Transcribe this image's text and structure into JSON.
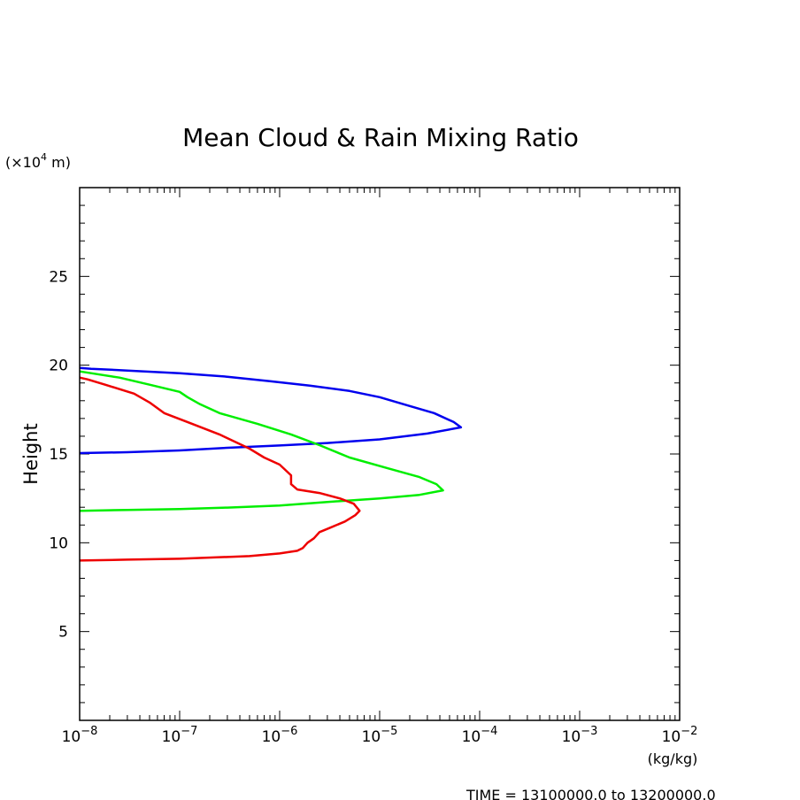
{
  "chart_data": {
    "type": "line",
    "title": "Mean Cloud & Rain Mixing Ratio",
    "xlabel": "",
    "ylabel": "Height",
    "x_unit_label": "(kg/kg)",
    "y_unit_label_prefix": "(×10",
    "y_unit_label_exp": "4",
    "y_unit_label_suffix": " m)",
    "footer": "TIME = 13100000.0 to 13200000.0",
    "x_scale": "log",
    "xlim": [
      1e-08,
      0.01
    ],
    "ylim": [
      0,
      30
    ],
    "x_ticks": [
      {
        "value": 1e-08,
        "base": "10",
        "exp": "−8"
      },
      {
        "value": 1e-07,
        "base": "10",
        "exp": "−7"
      },
      {
        "value": 1e-06,
        "base": "10",
        "exp": "−6"
      },
      {
        "value": 1e-05,
        "base": "10",
        "exp": "−5"
      },
      {
        "value": 0.0001,
        "base": "10",
        "exp": "−4"
      },
      {
        "value": 0.001,
        "base": "10",
        "exp": "−3"
      },
      {
        "value": 0.01,
        "base": "10",
        "exp": "−2"
      }
    ],
    "y_ticks": [
      {
        "value": 5,
        "label": "5"
      },
      {
        "value": 10,
        "label": "10"
      },
      {
        "value": 15,
        "label": "15"
      },
      {
        "value": 20,
        "label": "20"
      },
      {
        "value": 25,
        "label": "25"
      }
    ],
    "grid": false,
    "series": [
      {
        "color": "#0000ee",
        "points": [
          [
            1e-08,
            15.05
          ],
          [
            3e-08,
            15.1
          ],
          [
            1e-07,
            15.2
          ],
          [
            3e-07,
            15.35
          ],
          [
            1e-06,
            15.48
          ],
          [
            3e-06,
            15.62
          ],
          [
            1e-05,
            15.82
          ],
          [
            3e-05,
            16.15
          ],
          [
            6.5e-05,
            16.5
          ],
          [
            5.5e-05,
            16.8
          ],
          [
            3.5e-05,
            17.3
          ],
          [
            2e-05,
            17.7
          ],
          [
            1e-05,
            18.2
          ],
          [
            5e-06,
            18.55
          ],
          [
            2e-06,
            18.85
          ],
          [
            8e-07,
            19.1
          ],
          [
            3e-07,
            19.35
          ],
          [
            1e-07,
            19.55
          ],
          [
            3e-08,
            19.7
          ],
          [
            1.3e-08,
            19.8
          ],
          [
            1e-08,
            19.85
          ]
        ]
      },
      {
        "color": "#00ee00",
        "points": [
          [
            1e-08,
            11.8
          ],
          [
            3e-08,
            11.85
          ],
          [
            1e-07,
            11.9
          ],
          [
            3e-07,
            11.98
          ],
          [
            1e-06,
            12.1
          ],
          [
            3e-06,
            12.3
          ],
          [
            1e-05,
            12.5
          ],
          [
            2.5e-05,
            12.7
          ],
          [
            4.3e-05,
            12.95
          ],
          [
            3.7e-05,
            13.3
          ],
          [
            2.5e-05,
            13.7
          ],
          [
            1.2e-05,
            14.2
          ],
          [
            5e-06,
            14.8
          ],
          [
            2.5e-06,
            15.5
          ],
          [
            1.3e-06,
            16.1
          ],
          [
            6e-07,
            16.7
          ],
          [
            2.5e-07,
            17.3
          ],
          [
            1.6e-07,
            17.8
          ],
          [
            1.2e-07,
            18.2
          ],
          [
            1e-07,
            18.5
          ],
          [
            5e-08,
            18.9
          ],
          [
            2.5e-08,
            19.3
          ],
          [
            1.3e-08,
            19.55
          ],
          [
            1e-08,
            19.65
          ]
        ]
      },
      {
        "color": "#ee0000",
        "points": [
          [
            1e-08,
            9.0
          ],
          [
            3e-08,
            9.05
          ],
          [
            1e-07,
            9.1
          ],
          [
            5e-07,
            9.25
          ],
          [
            1e-06,
            9.4
          ],
          [
            1.5e-06,
            9.55
          ],
          [
            1.7e-06,
            9.7
          ],
          [
            1.9e-06,
            10.0
          ],
          [
            2.2e-06,
            10.25
          ],
          [
            2.5e-06,
            10.6
          ],
          [
            3.2e-06,
            10.85
          ],
          [
            4.5e-06,
            11.2
          ],
          [
            5.7e-06,
            11.55
          ],
          [
            6.3e-06,
            11.8
          ],
          [
            5.5e-06,
            12.2
          ],
          [
            4e-06,
            12.5
          ],
          [
            2.5e-06,
            12.8
          ],
          [
            1.5e-06,
            13.0
          ],
          [
            1.3e-06,
            13.3
          ],
          [
            1.3e-06,
            13.8
          ],
          [
            1e-06,
            14.4
          ],
          [
            7e-07,
            14.8
          ],
          [
            5e-07,
            15.3
          ],
          [
            2.5e-07,
            16.1
          ],
          [
            1.2e-07,
            16.8
          ],
          [
            7e-08,
            17.3
          ],
          [
            5e-08,
            17.9
          ],
          [
            3.5e-08,
            18.4
          ],
          [
            1.8e-08,
            18.9
          ],
          [
            1.2e-08,
            19.2
          ],
          [
            1e-08,
            19.3
          ]
        ]
      }
    ]
  }
}
